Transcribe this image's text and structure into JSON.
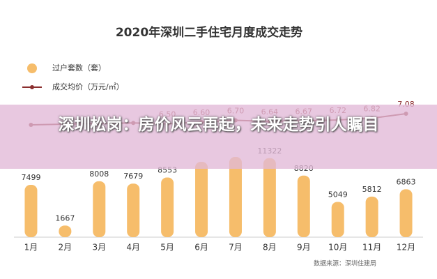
{
  "chart_data": {
    "type": "bar",
    "title": "2020年深圳二手住宅月度成交走势",
    "categories": [
      "1月",
      "2月",
      "3月",
      "4月",
      "5月",
      "6月",
      "7月",
      "8月",
      "9月",
      "10月",
      "11月",
      "12月"
    ],
    "ylim": [
      0,
      20000
    ],
    "y2lim": [
      0,
      8
    ],
    "series": [
      {
        "name": "过户套数（套）",
        "type": "bar",
        "color": "#f6bd6b",
        "values": [
          7499,
          1667,
          8008,
          7679,
          8553,
          10800,
          11500,
          11322,
          8820,
          5049,
          5812,
          6863
        ],
        "value_labels": [
          "7499",
          "1667",
          "8008",
          "7679",
          "8553",
          null,
          null,
          "11322",
          "8820",
          "5049",
          "5812",
          "6863"
        ]
      },
      {
        "name": "成交均价（万元/㎡）",
        "type": "line",
        "axis": "y2",
        "color": "#8b2e2e",
        "values": [
          6.44,
          6.48,
          6.52,
          6.55,
          6.5,
          6.6,
          6.7,
          6.64,
          6.67,
          6.72,
          6.82,
          7.08
        ],
        "value_labels": [
          null,
          null,
          null,
          null,
          "6.50",
          "6.60",
          "6.70",
          "6.64",
          "6.67",
          "6.72",
          "6.82",
          "7.08"
        ]
      }
    ],
    "source": "数据来源：深圳住建局",
    "annotation": "深圳松岗：房价风云再起，未来走势引人瞩目"
  }
}
